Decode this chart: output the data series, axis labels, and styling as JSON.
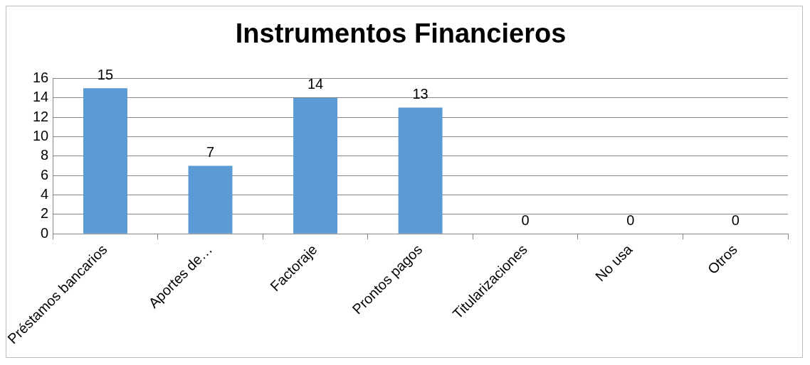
{
  "chart_data": {
    "type": "bar",
    "title": "Instrumentos Financieros",
    "categories": [
      "Préstamos bancarios",
      "Aportes de…",
      "Factoraje",
      "Prontos pagos",
      "Titularizaciones",
      "No usa",
      "Otros"
    ],
    "values": [
      15,
      7,
      14,
      13,
      0,
      0,
      0
    ],
    "color": "#5b9bd5",
    "ylim": [
      0,
      16
    ],
    "yticks": [
      0,
      2,
      4,
      6,
      8,
      10,
      12,
      14,
      16
    ],
    "grid": "y",
    "data_labels": true,
    "legend": false
  }
}
